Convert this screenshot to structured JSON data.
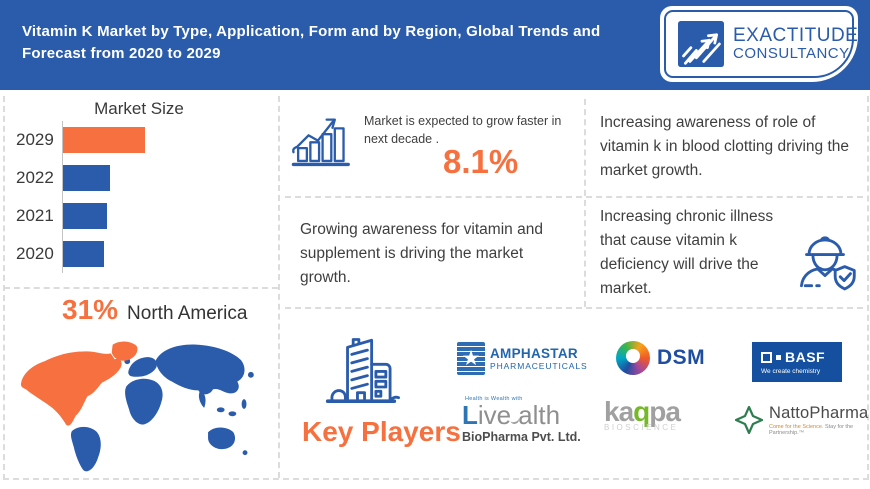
{
  "colors": {
    "header_blue": "#2b5cab",
    "accent_orange": "#f6713f",
    "bar_blue": "#2b5cab",
    "text_dark": "#3f3f3f",
    "divider_gray": "#dcdcdc",
    "map_world": "#2b5cab",
    "map_north_america": "#f6713f"
  },
  "header": {
    "title": "Vitamin K Market by Type, Application, Form and by Region, Global Trends and Forecast from 2020 to 2029",
    "logo": {
      "line1": "EXACTITUDE",
      "line2": "CONSULTANCY"
    }
  },
  "chart_data": {
    "type": "bar",
    "orientation": "horizontal",
    "title": "Market Size",
    "categories": [
      "2029",
      "2022",
      "2021",
      "2020"
    ],
    "values": [
      83,
      48,
      45,
      42
    ],
    "value_note": "relative bar lengths; axis unlabeled in source",
    "xlim": [
      0,
      216
    ],
    "bar_colors": [
      "#f6713f",
      "#2b5cab",
      "#2b5cab",
      "#2b5cab"
    ],
    "grid": false,
    "legend": false
  },
  "region": {
    "percent": "31%",
    "label": "North America"
  },
  "insights": {
    "growth_note": "Market is expected to grow faster in next decade .",
    "growth_value": "8.1%",
    "top_right": "Increasing awareness of role of vitamin k in blood clotting driving the market growth.",
    "mid_left": "Growing awareness for vitamin and supplement is driving the market growth.",
    "mid_right": "Increasing chronic illness that cause vitamin k deficiency will drive the market."
  },
  "key_players": {
    "title": "Key Players",
    "companies": [
      {
        "id": "amphastar",
        "line1": "AMPHASTAR",
        "line2": "PHARMACEUTICALS"
      },
      {
        "id": "dsm",
        "text": "DSM"
      },
      {
        "id": "basf",
        "text": "BASF",
        "tagline": "We create chemistry"
      },
      {
        "id": "livealth",
        "tagline": "Health is Wealth with",
        "part1": "L",
        "part2": "ive",
        "part3": "alth",
        "line2": "BioPharma Pvt. Ltd."
      },
      {
        "id": "kappa",
        "part1": "ka",
        "part2": "q",
        "part3": "pa",
        "sub": "BIOSCIENCE"
      },
      {
        "id": "nattopharma",
        "text": "NattoPharma",
        "tagline1": "Come for the Science.",
        "tagline2": " Stay for the Partnership.™"
      }
    ]
  }
}
